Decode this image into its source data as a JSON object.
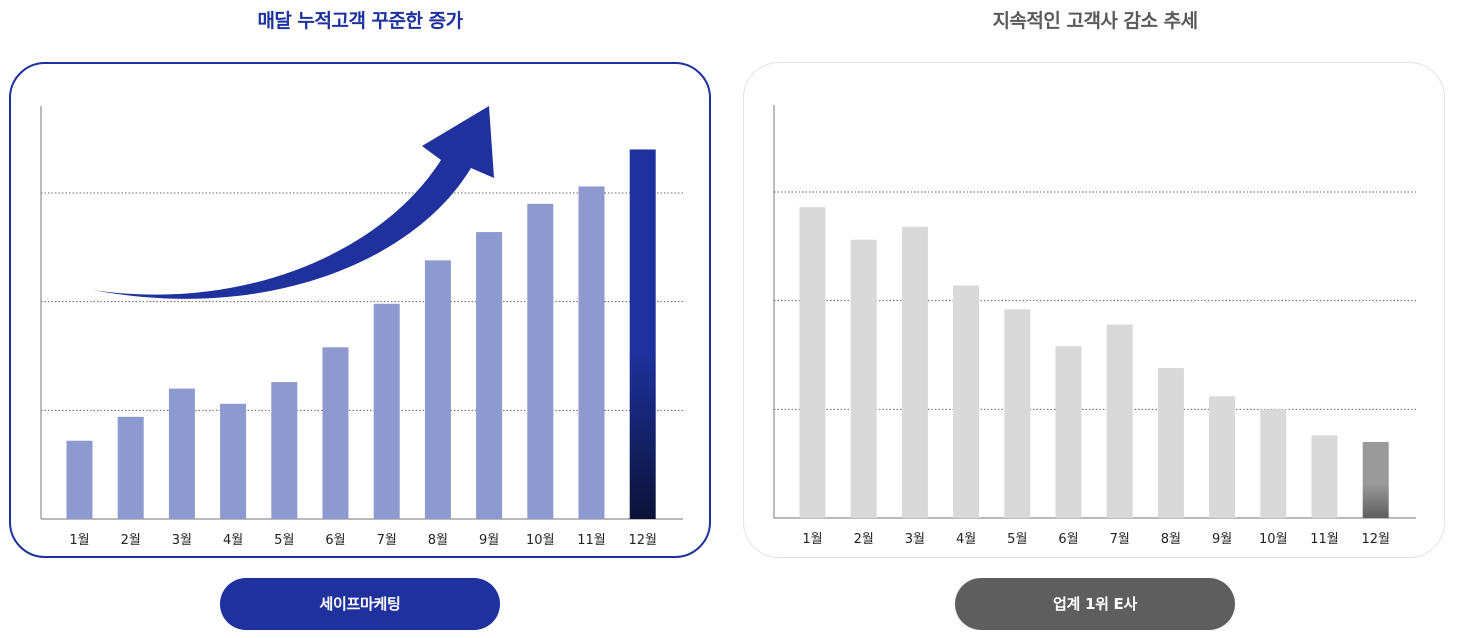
{
  "chart_data": [
    {
      "type": "bar",
      "title": "매달 누적고객 꾸준한 증가",
      "categories": [
        "1월",
        "2월",
        "3월",
        "4월",
        "5월",
        "6월",
        "7월",
        "8월",
        "9월",
        "10월",
        "11월",
        "12월"
      ],
      "values": [
        18,
        23.5,
        30,
        26.5,
        31.5,
        39.5,
        49.5,
        59.5,
        66,
        72.5,
        76.5,
        85
      ],
      "ylim": [
        0,
        95
      ],
      "grid": "dotted horizontal",
      "colors": {
        "bar": "#8e99cf",
        "highlight_top": "#1e319c",
        "highlight_bottom": "#0c1236",
        "arrow": "#1e319c"
      },
      "label": "세이프마케팅"
    },
    {
      "type": "bar",
      "title": "지속적인 고객사 감소 추세",
      "categories": [
        "1월",
        "2월",
        "3월",
        "4월",
        "5월",
        "6월",
        "7월",
        "8월",
        "9월",
        "10월",
        "11월",
        "12월"
      ],
      "values": [
        71.5,
        64,
        67,
        53.5,
        48,
        39.5,
        44.5,
        34.5,
        28,
        25,
        19,
        17.5
      ],
      "ylim": [
        0,
        95
      ],
      "grid": "dotted horizontal",
      "colors": {
        "bar": "#d9d9d9",
        "highlight_top": "#9a9a9a",
        "highlight_bottom": "#5e5e5e"
      },
      "label": "업계 1위 E사"
    }
  ]
}
